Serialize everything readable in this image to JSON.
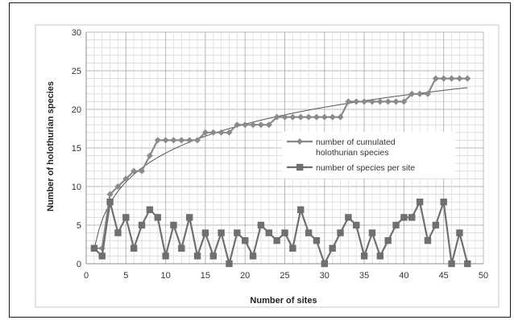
{
  "chart_data": {
    "type": "line",
    "xlabel": "Number of sites",
    "ylabel": "Number of holothurian species",
    "xlim": [
      0,
      50
    ],
    "ylim": [
      0,
      30
    ],
    "xticks": [
      0,
      5,
      10,
      15,
      20,
      25,
      30,
      35,
      40,
      45,
      50
    ],
    "yticks": [
      0,
      5,
      10,
      15,
      20,
      25,
      30
    ],
    "grid": true,
    "legend_position": "center-right",
    "series": [
      {
        "name": "number of cumulated holothurian species",
        "legend_lines": [
          "number of cumulated",
          "holothurian species"
        ],
        "marker": "diamond",
        "color": "#8a8a8a",
        "x": [
          1,
          2,
          3,
          4,
          5,
          6,
          7,
          8,
          9,
          10,
          11,
          12,
          13,
          14,
          15,
          16,
          17,
          18,
          19,
          20,
          21,
          22,
          23,
          24,
          25,
          26,
          27,
          28,
          29,
          30,
          31,
          32,
          33,
          34,
          35,
          36,
          37,
          38,
          39,
          40,
          41,
          42,
          43,
          44,
          45,
          46,
          47,
          48
        ],
        "values": [
          2,
          2,
          9,
          10,
          11,
          12,
          12,
          14,
          16,
          16,
          16,
          16,
          16,
          16,
          17,
          17,
          17,
          17,
          18,
          18,
          18,
          18,
          18,
          19,
          19,
          19,
          19,
          19,
          19,
          19,
          19,
          19,
          21,
          21,
          21,
          21,
          21,
          21,
          21,
          21,
          22,
          22,
          22,
          24,
          24,
          24,
          24,
          24
        ]
      },
      {
        "name": "number of species per site",
        "legend_lines": [
          "number of species per site"
        ],
        "marker": "square",
        "color": "#6f6f6f",
        "x": [
          1,
          2,
          3,
          4,
          5,
          6,
          7,
          8,
          9,
          10,
          11,
          12,
          13,
          14,
          15,
          16,
          17,
          18,
          19,
          20,
          21,
          22,
          23,
          24,
          25,
          26,
          27,
          28,
          29,
          30,
          31,
          32,
          33,
          34,
          35,
          36,
          37,
          38,
          39,
          40,
          41,
          42,
          43,
          44,
          45,
          46,
          47,
          48
        ],
        "values": [
          2,
          1,
          8,
          4,
          6,
          2,
          5,
          7,
          6,
          1,
          5,
          2,
          6,
          1,
          4,
          1,
          4,
          0,
          4,
          3,
          1,
          5,
          4,
          3,
          4,
          2,
          7,
          4,
          3,
          0,
          2,
          4,
          6,
          5,
          1,
          4,
          1,
          3,
          5,
          6,
          6,
          8,
          3,
          5,
          8,
          0,
          4,
          0
        ]
      }
    ],
    "trendline": {
      "of_series": 0,
      "type": "logarithmic",
      "color": "#555555"
    }
  }
}
